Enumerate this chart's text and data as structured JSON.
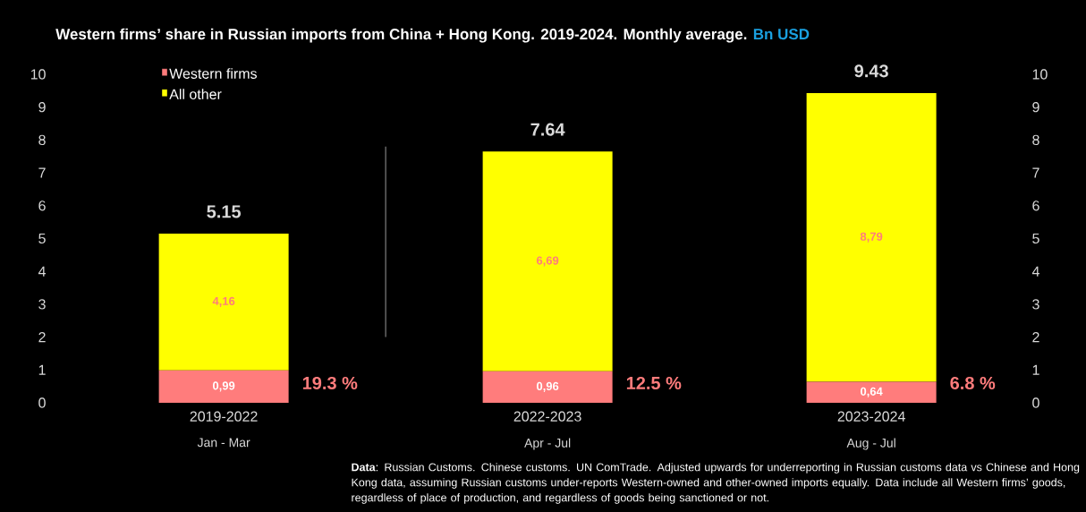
{
  "chart_data": {
    "type": "bar",
    "stacked": true,
    "title": "Western firms’ share in Russian imports from China + Hong Kong. 2019-2024. Monthly average.",
    "subtitle": "Bn USD",
    "categories": [
      "2019-2022",
      "2022-2023",
      "2023-2024"
    ],
    "series": [
      {
        "name": "Western firms",
        "color": "#ff7c7c",
        "values": [
          0.99,
          0.96,
          0.64
        ],
        "value_labels": [
          "0,99",
          "0,96",
          "0,64"
        ]
      },
      {
        "name": "All other",
        "color": "#ffff00",
        "values": [
          4.16,
          6.69,
          8.79
        ],
        "value_labels": [
          "4,16",
          "6,69",
          "8,79"
        ]
      }
    ],
    "totals": [
      "5.15",
      "7.64",
      "9.43"
    ],
    "ylim": [
      0,
      10
    ],
    "yticks": [
      0,
      1,
      2,
      3,
      4,
      5,
      6,
      7,
      8,
      9,
      10
    ],
    "y2lim": [
      0,
      10
    ],
    "y2ticks": [
      0,
      1,
      2,
      3,
      4,
      5,
      6,
      7,
      8,
      9,
      10
    ],
    "legend": "top left",
    "grid": false,
    "annotations": [
      "19.3 %",
      "12.5 %",
      "6.8 %",
      "Jan - Mar",
      "Apr - Jul",
      "Aug - Jul",
      "**Data**: Russian Customs. Chinese customs. UN ComTrade. Adjusted upwards for underreporting in Russian customs data vs Chinese and Hong Kong data, assuming Russian customs under-reports Western-owned and other-owned imports equally. Data include all Western firms’ goods, regardless of place of production, and regardless of goods being sanctioned or not."
    ]
  }
}
